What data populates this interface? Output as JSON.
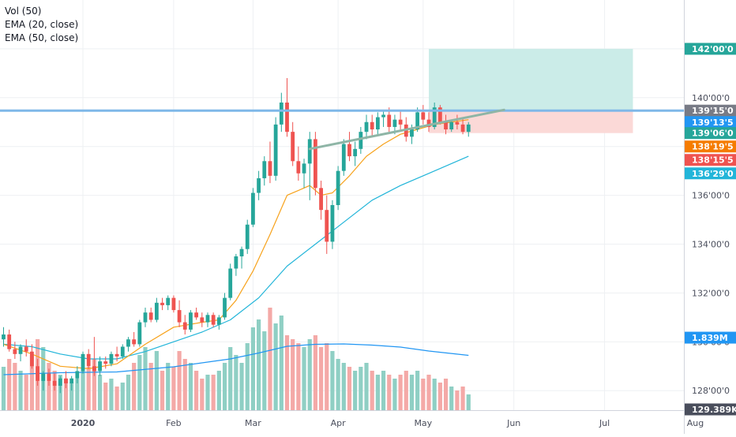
{
  "legend": {
    "vol": "Vol (50)",
    "ema20": "EMA (20, close)",
    "ema50": "EMA (50, close)"
  },
  "colors": {
    "up": "#26a69a",
    "down": "#ef5350",
    "vol_up": "#8fcfc4",
    "vol_down": "#f4a9a7",
    "ema20": "#f7a21b",
    "ema50": "#22b5d9",
    "vol_ma": "#2196f3",
    "hline": "#7fb8e8",
    "trend": "#8eb5a6",
    "target": "#cbece8",
    "stop": "#fbd9d7",
    "grid": "#eef0f3"
  },
  "chart_data": {
    "type": "candlestick",
    "price_range": [
      127.2,
      144.0
    ],
    "volume_range": [
      0,
      3.0
    ],
    "y_ticks": [
      {
        "value": 128,
        "label": "128'00'0"
      },
      {
        "value": 130,
        "label": "130'00'0"
      },
      {
        "value": 132,
        "label": "132'00'0"
      },
      {
        "value": 134,
        "label": "134'00'0"
      },
      {
        "value": 136,
        "label": "136'00'0"
      },
      {
        "value": 140,
        "label": "140'00'0"
      }
    ],
    "x_ticks": [
      {
        "index": 14,
        "label": "2020",
        "bold": true
      },
      {
        "index": 30,
        "label": "Feb"
      },
      {
        "index": 44,
        "label": "Mar"
      },
      {
        "index": 59,
        "label": "Apr"
      },
      {
        "index": 74,
        "label": "May"
      },
      {
        "index": 90,
        "label": "Jun"
      },
      {
        "index": 106,
        "label": "Jul"
      },
      {
        "index": 122,
        "label": "Aug"
      }
    ],
    "price_labels": [
      {
        "value": 142.0,
        "label": "142'00'0",
        "color": "#26a69a"
      },
      {
        "value": 139.47,
        "label": "139'15'0",
        "color": "#787b86"
      },
      {
        "value": 139.0,
        "label": "139'13'5",
        "color": "#2196f3"
      },
      {
        "value": 138.55,
        "label": "139'06'0",
        "color": "#26a69a"
      },
      {
        "value": 138.0,
        "label": "138'19'5",
        "color": "#f57c00"
      },
      {
        "value": 137.45,
        "label": "138'15'5",
        "color": "#ef5350"
      },
      {
        "value": 136.9,
        "label": "136'29'0",
        "color": "#22b5d9"
      }
    ],
    "volume_labels": [
      {
        "value": 1.839,
        "label": "1.839M",
        "color": "#2196f3"
      },
      {
        "value": 0.08,
        "label": "129.389K",
        "color": "#4a4e5c"
      }
    ],
    "horizontal_line": 139.47,
    "trendline": {
      "from": [
        54,
        137.9
      ],
      "to": [
        82,
        139.5
      ]
    },
    "position": {
      "start": 75,
      "end": 111,
      "entry": 139.47,
      "target": 142.0,
      "stop": 138.55
    },
    "candles": [
      [
        0,
        130.1,
        130.6,
        129.8,
        130.3,
        1.1
      ],
      [
        1,
        130.3,
        130.5,
        129.6,
        129.7,
        1.3
      ],
      [
        2,
        129.7,
        130.0,
        129.3,
        129.5,
        1.2
      ],
      [
        3,
        129.5,
        129.9,
        129.2,
        129.8,
        1.0
      ],
      [
        4,
        129.8,
        130.1,
        129.4,
        129.6,
        0.9
      ],
      [
        5,
        129.6,
        129.9,
        128.9,
        129.0,
        1.4
      ],
      [
        6,
        129.0,
        129.3,
        128.2,
        128.4,
        1.8
      ],
      [
        7,
        128.4,
        128.8,
        128.0,
        128.7,
        1.6
      ],
      [
        8,
        128.7,
        128.9,
        128.2,
        128.4,
        1.2
      ],
      [
        9,
        128.4,
        128.7,
        128.0,
        128.2,
        1.0
      ],
      [
        10,
        128.2,
        128.6,
        127.9,
        128.5,
        0.9
      ],
      [
        11,
        128.5,
        128.8,
        128.1,
        128.3,
        0.8
      ],
      [
        12,
        128.3,
        128.6,
        128.0,
        128.5,
        0.7
      ],
      [
        13,
        128.5,
        129.0,
        128.3,
        128.8,
        0.8
      ],
      [
        14,
        128.8,
        129.6,
        128.7,
        129.5,
        1.0
      ],
      [
        15,
        129.5,
        129.7,
        128.9,
        129.0,
        1.1
      ],
      [
        16,
        129.0,
        130.2,
        128.6,
        128.8,
        1.3
      ],
      [
        17,
        128.8,
        129.4,
        128.6,
        129.2,
        0.9
      ],
      [
        18,
        129.2,
        129.4,
        128.9,
        129.1,
        0.7
      ],
      [
        19,
        129.1,
        129.6,
        129.0,
        129.5,
        0.8
      ],
      [
        20,
        129.5,
        129.8,
        129.2,
        129.4,
        0.6
      ],
      [
        21,
        129.4,
        129.9,
        129.3,
        129.8,
        0.7
      ],
      [
        22,
        129.8,
        130.2,
        129.6,
        130.1,
        0.9
      ],
      [
        23,
        130.1,
        130.4,
        129.8,
        129.9,
        1.2
      ],
      [
        24,
        129.9,
        130.9,
        129.8,
        130.8,
        1.4
      ],
      [
        25,
        130.8,
        131.4,
        130.6,
        131.2,
        1.6
      ],
      [
        26,
        131.2,
        131.4,
        130.8,
        130.9,
        1.2
      ],
      [
        27,
        130.9,
        131.8,
        130.8,
        131.6,
        1.5
      ],
      [
        28,
        131.6,
        131.8,
        131.3,
        131.5,
        1.0
      ],
      [
        29,
        131.5,
        131.9,
        131.3,
        131.8,
        1.2
      ],
      [
        30,
        131.8,
        131.9,
        131.2,
        131.3,
        1.1
      ],
      [
        31,
        131.3,
        131.7,
        130.6,
        130.8,
        1.5
      ],
      [
        32,
        130.8,
        131.1,
        130.3,
        130.5,
        1.3
      ],
      [
        33,
        130.5,
        131.3,
        130.4,
        131.2,
        1.2
      ],
      [
        34,
        131.2,
        131.4,
        130.9,
        131.0,
        1.0
      ],
      [
        35,
        131.0,
        131.2,
        130.6,
        130.8,
        0.8
      ],
      [
        36,
        130.8,
        131.2,
        130.6,
        131.1,
        0.9
      ],
      [
        37,
        131.1,
        131.2,
        130.6,
        130.7,
        0.9
      ],
      [
        38,
        130.7,
        131.1,
        130.5,
        131.0,
        1.0
      ],
      [
        39,
        131.0,
        132.0,
        130.9,
        131.8,
        1.2
      ],
      [
        40,
        131.8,
        133.2,
        131.7,
        133.0,
        1.6
      ],
      [
        41,
        133.0,
        133.6,
        132.7,
        133.5,
        1.4
      ],
      [
        42,
        133.5,
        133.9,
        133.0,
        133.8,
        1.2
      ],
      [
        43,
        133.8,
        135.0,
        133.6,
        134.8,
        1.7
      ],
      [
        44,
        134.8,
        136.3,
        134.7,
        136.1,
        2.1
      ],
      [
        45,
        136.1,
        137.0,
        135.8,
        136.7,
        2.3
      ],
      [
        46,
        136.7,
        137.6,
        136.4,
        137.4,
        2.0
      ],
      [
        47,
        137.4,
        138.2,
        136.5,
        136.8,
        2.6
      ],
      [
        48,
        136.8,
        139.2,
        136.6,
        138.9,
        2.2
      ],
      [
        49,
        138.9,
        140.2,
        138.6,
        139.8,
        2.4
      ],
      [
        50,
        139.8,
        140.8,
        138.4,
        138.6,
        1.9
      ],
      [
        51,
        138.6,
        139.0,
        137.2,
        137.4,
        1.8
      ],
      [
        52,
        137.4,
        138.0,
        136.6,
        136.9,
        1.7
      ],
      [
        53,
        136.9,
        137.5,
        136.3,
        137.3,
        1.6
      ],
      [
        54,
        137.3,
        138.6,
        135.8,
        138.3,
        1.8
      ],
      [
        55,
        138.3,
        138.6,
        136.0,
        136.3,
        1.9
      ],
      [
        56,
        136.3,
        136.6,
        135.0,
        135.4,
        1.6
      ],
      [
        57,
        135.4,
        136.0,
        133.6,
        134.1,
        1.7
      ],
      [
        58,
        134.1,
        135.8,
        133.8,
        135.6,
        1.5
      ],
      [
        59,
        135.6,
        137.2,
        135.4,
        137.0,
        1.3
      ],
      [
        60,
        137.0,
        138.3,
        136.8,
        138.1,
        1.2
      ],
      [
        61,
        138.1,
        138.6,
        137.4,
        137.6,
        1.1
      ],
      [
        62,
        137.6,
        138.2,
        137.2,
        137.9,
        1.0
      ],
      [
        63,
        137.9,
        138.8,
        137.7,
        138.6,
        1.1
      ],
      [
        64,
        138.6,
        139.3,
        138.3,
        139.0,
        1.2
      ],
      [
        65,
        139.0,
        139.3,
        138.4,
        138.7,
        1.0
      ],
      [
        66,
        138.7,
        139.4,
        138.5,
        139.2,
        0.9
      ],
      [
        67,
        139.2,
        139.5,
        138.8,
        139.3,
        1.0
      ],
      [
        68,
        139.3,
        139.6,
        138.6,
        138.8,
        0.9
      ],
      [
        69,
        138.8,
        139.3,
        138.5,
        139.1,
        0.8
      ],
      [
        70,
        139.1,
        139.5,
        138.7,
        138.9,
        0.9
      ],
      [
        71,
        138.9,
        139.2,
        138.2,
        138.4,
        1.0
      ],
      [
        72,
        138.4,
        138.9,
        138.1,
        138.7,
        0.9
      ],
      [
        73,
        138.7,
        139.6,
        138.6,
        139.4,
        1.0
      ],
      [
        74,
        139.4,
        139.7,
        138.9,
        139.1,
        0.8
      ],
      [
        75,
        139.1,
        139.4,
        138.6,
        138.8,
        0.9
      ],
      [
        76,
        138.8,
        139.8,
        138.7,
        139.6,
        0.8
      ],
      [
        77,
        139.6,
        139.7,
        138.9,
        139.0,
        0.7
      ],
      [
        78,
        139.0,
        139.3,
        138.5,
        138.7,
        0.8
      ],
      [
        79,
        138.7,
        139.1,
        138.6,
        139.0,
        0.6
      ],
      [
        80,
        139.0,
        139.3,
        138.7,
        138.9,
        0.5
      ],
      [
        81,
        138.9,
        139.2,
        138.5,
        138.6,
        0.6
      ],
      [
        82,
        138.6,
        139.0,
        138.4,
        138.9,
        0.4
      ]
    ],
    "ema20": [
      [
        0,
        129.9
      ],
      [
        5,
        129.5
      ],
      [
        10,
        129.0
      ],
      [
        15,
        128.9
      ],
      [
        20,
        129.1
      ],
      [
        25,
        129.9
      ],
      [
        30,
        130.6
      ],
      [
        35,
        130.8
      ],
      [
        38,
        130.9
      ],
      [
        41,
        131.7
      ],
      [
        44,
        132.9
      ],
      [
        47,
        134.4
      ],
      [
        50,
        136.0
      ],
      [
        52,
        136.2
      ],
      [
        54,
        136.4
      ],
      [
        56,
        136.0
      ],
      [
        58,
        136.1
      ],
      [
        61,
        136.8
      ],
      [
        64,
        137.6
      ],
      [
        67,
        138.1
      ],
      [
        70,
        138.5
      ],
      [
        73,
        138.7
      ],
      [
        76,
        138.9
      ],
      [
        79,
        139.0
      ],
      [
        82,
        139.1
      ]
    ],
    "ema50": [
      [
        0,
        129.9
      ],
      [
        5,
        129.8
      ],
      [
        10,
        129.5
      ],
      [
        15,
        129.3
      ],
      [
        20,
        129.3
      ],
      [
        25,
        129.6
      ],
      [
        30,
        130.0
      ],
      [
        35,
        130.4
      ],
      [
        40,
        130.9
      ],
      [
        45,
        131.8
      ],
      [
        50,
        133.1
      ],
      [
        55,
        134.0
      ],
      [
        60,
        134.9
      ],
      [
        65,
        135.8
      ],
      [
        70,
        136.4
      ],
      [
        75,
        136.9
      ],
      [
        82,
        137.6
      ]
    ],
    "vol_ma": [
      [
        0,
        0.9
      ],
      [
        10,
        0.95
      ],
      [
        20,
        0.97
      ],
      [
        30,
        1.1
      ],
      [
        40,
        1.3
      ],
      [
        45,
        1.45
      ],
      [
        50,
        1.62
      ],
      [
        55,
        1.67
      ],
      [
        60,
        1.68
      ],
      [
        65,
        1.65
      ],
      [
        70,
        1.6
      ],
      [
        75,
        1.5
      ],
      [
        82,
        1.39
      ]
    ]
  }
}
